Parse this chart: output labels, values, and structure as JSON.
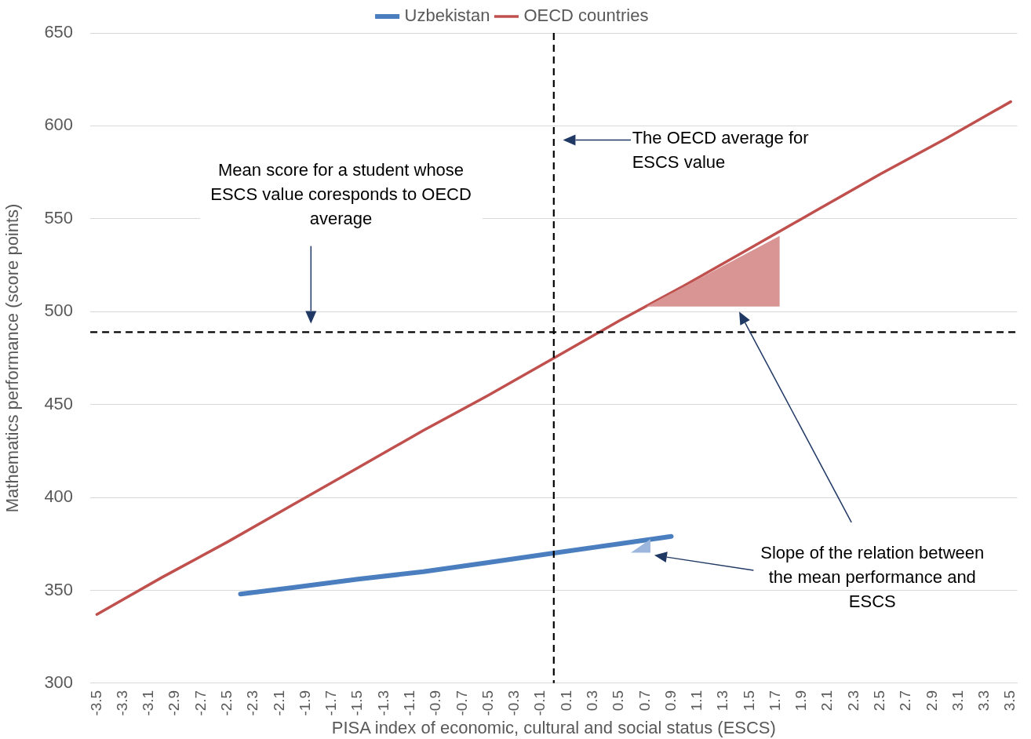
{
  "chart_data": {
    "type": "line",
    "xlabel": "PISA index of economic, cultural and social status (ESCS)",
    "ylabel": "Mathematics performance (score points)",
    "xlim": [
      -3.55,
      3.55
    ],
    "xticks": [
      -3.5,
      -3.3,
      -3.1,
      -2.9,
      -2.7,
      -2.5,
      -2.3,
      -2.1,
      -1.9,
      -1.7,
      -1.5,
      -1.3,
      -1.1,
      -0.9,
      -0.7,
      -0.5,
      -0.3,
      -0.1,
      0.1,
      0.3,
      0.5,
      0.7,
      0.9,
      1.1,
      1.3,
      1.5,
      1.7,
      1.9,
      2.1,
      2.3,
      2.5,
      2.7,
      2.9,
      3.1,
      3.3,
      3.5
    ],
    "ylim": [
      300,
      650
    ],
    "yticks": [
      300,
      350,
      400,
      450,
      500,
      550,
      600,
      650
    ],
    "series": [
      {
        "name": "Uzbekistan",
        "color": "#4a7ebf",
        "x": [
          -2.4,
          -2,
          -1.5,
          -1,
          -0.5,
          0,
          0.5,
          0.9
        ],
        "values": [
          348,
          351.5,
          356,
          360,
          365,
          370,
          375,
          379
        ]
      },
      {
        "name": "OECD countries",
        "color": "#c0504d",
        "x": [
          -3.5,
          -3,
          -2.5,
          -2,
          -1.5,
          -1,
          -0.5,
          0,
          0.5,
          1,
          1.5,
          2,
          2.5,
          3,
          3.5
        ],
        "values": [
          337,
          357,
          376,
          396,
          416,
          436,
          455,
          475,
          495,
          514,
          534,
          554,
          574,
          593,
          613
        ]
      }
    ],
    "ref_lines": [
      {
        "axis": "x",
        "value": 0,
        "color": "#000000",
        "line_style": "dashed"
      },
      {
        "axis": "y",
        "value": 489,
        "color": "#000000",
        "line_style": "dashed"
      }
    ],
    "annotations": [
      "Mean score for a student whose ESCS value coresponds to OECD average",
      "The OECD average for ESCS value",
      "Slope of the relation between the mean performance and ESCS"
    ],
    "grid": "y",
    "legend": "top",
    "marker": "none",
    "line_style": "solid"
  }
}
